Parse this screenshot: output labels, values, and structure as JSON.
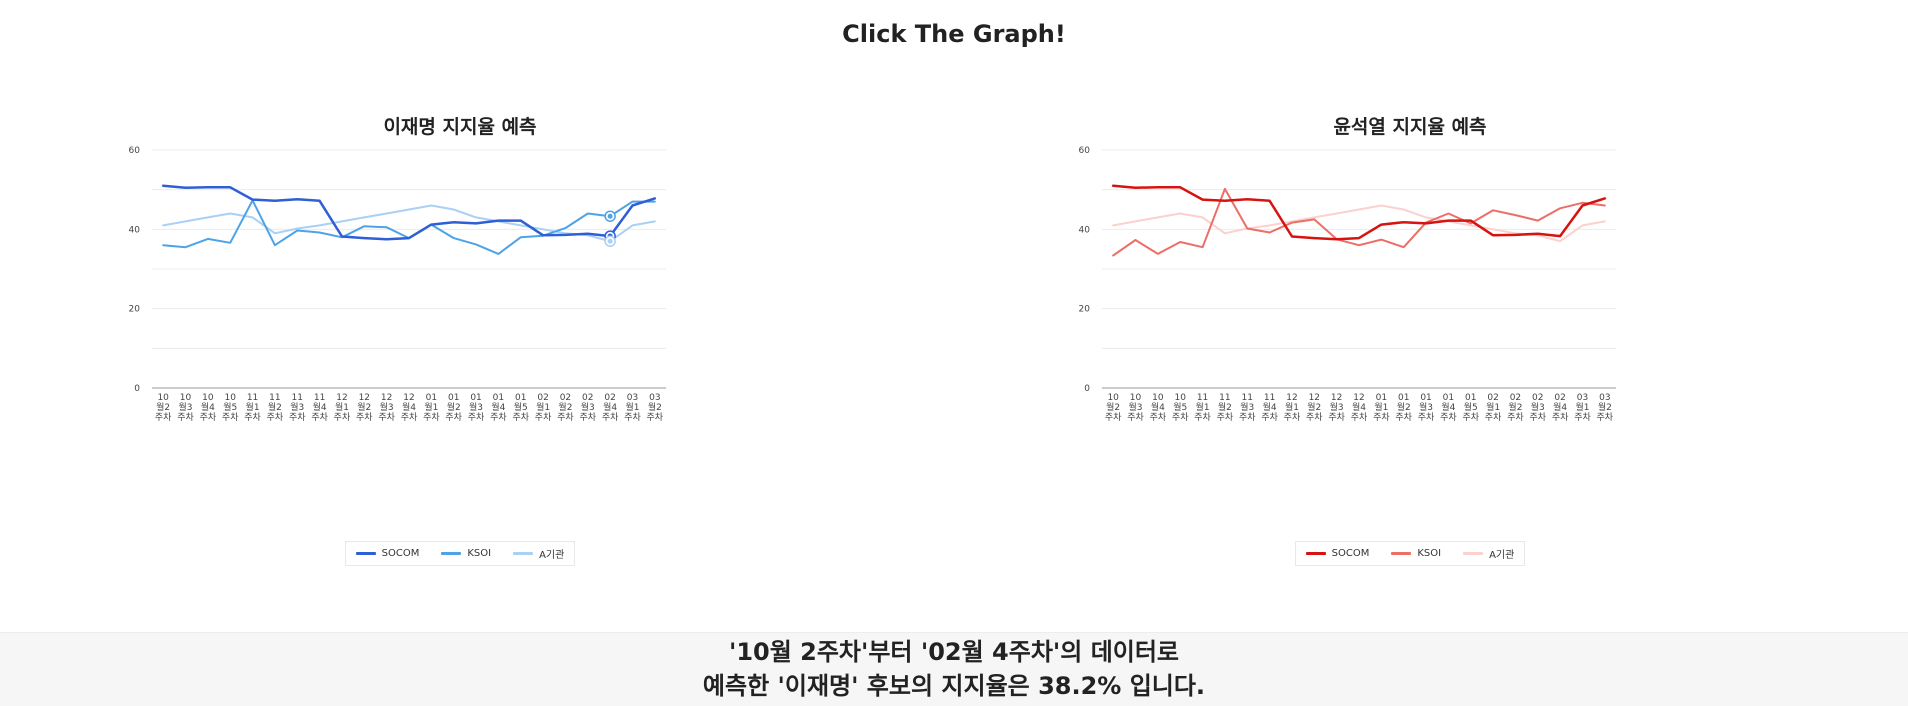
{
  "page": {
    "title": "Click The Graph!"
  },
  "chart_data": [
    {
      "type": "line",
      "title": "이재명 지지율 예측",
      "ylim": [
        0,
        60
      ],
      "yticks": [
        0,
        20,
        40,
        60
      ],
      "grid": true,
      "legend_position": "bottom-center",
      "categories": [
        [
          "10",
          "월2",
          "주차"
        ],
        [
          "10",
          "월3",
          "주차"
        ],
        [
          "10",
          "월4",
          "주차"
        ],
        [
          "10",
          "월5",
          "주차"
        ],
        [
          "11",
          "월1",
          "주차"
        ],
        [
          "11",
          "월2",
          "주차"
        ],
        [
          "11",
          "월3",
          "주차"
        ],
        [
          "11",
          "월4",
          "주차"
        ],
        [
          "12",
          "월1",
          "주차"
        ],
        [
          "12",
          "월2",
          "주차"
        ],
        [
          "12",
          "월3",
          "주차"
        ],
        [
          "12",
          "월4",
          "주차"
        ],
        [
          "01",
          "월1",
          "주차"
        ],
        [
          "01",
          "월2",
          "주차"
        ],
        [
          "01",
          "월3",
          "주차"
        ],
        [
          "01",
          "월4",
          "주차"
        ],
        [
          "01",
          "월5",
          "주차"
        ],
        [
          "02",
          "월1",
          "주차"
        ],
        [
          "02",
          "월2",
          "주차"
        ],
        [
          "02",
          "월3",
          "주차"
        ],
        [
          "02",
          "월4",
          "주차"
        ],
        [
          "03",
          "월1",
          "주차"
        ],
        [
          "03",
          "월2",
          "주차"
        ]
      ],
      "series": [
        {
          "name": "SOCOM",
          "color": "#2f5fd6",
          "width": 2.5,
          "values": [
            51,
            50.5,
            50.6,
            50.6,
            47.5,
            47.2,
            47.6,
            47.2,
            38.2,
            37.8,
            37.5,
            37.8,
            41.2,
            41.8,
            41.5,
            42.2,
            42.2,
            38.5,
            38.6,
            38.9,
            38.3,
            46,
            47.8
          ]
        },
        {
          "name": "KSOI",
          "color": "#4da3e8",
          "width": 2,
          "values": [
            36,
            35.5,
            37.6,
            36.6,
            47.3,
            36,
            39.7,
            39.2,
            38,
            40.8,
            40.5,
            37.8,
            41.2,
            37.8,
            36.2,
            33.8,
            38,
            38.4,
            40.3,
            44,
            43.3,
            47,
            47
          ]
        },
        {
          "name": "A기관",
          "color": "#a9d0f5",
          "width": 2,
          "values": [
            41,
            42,
            43,
            44,
            43,
            39,
            40.2,
            41,
            42,
            43,
            44,
            45,
            46,
            45,
            43,
            42,
            41,
            40,
            39,
            38.5,
            37,
            41,
            42
          ]
        }
      ],
      "highlight_index": 20
    },
    {
      "type": "line",
      "title": "윤석열 지지율 예측",
      "ylim": [
        0,
        60
      ],
      "yticks": [
        0,
        20,
        40,
        60
      ],
      "grid": true,
      "legend_position": "bottom-center",
      "categories": [
        [
          "10",
          "월2",
          "주차"
        ],
        [
          "10",
          "월3",
          "주차"
        ],
        [
          "10",
          "월4",
          "주차"
        ],
        [
          "10",
          "월5",
          "주차"
        ],
        [
          "11",
          "월1",
          "주차"
        ],
        [
          "11",
          "월2",
          "주차"
        ],
        [
          "11",
          "월3",
          "주차"
        ],
        [
          "11",
          "월4",
          "주차"
        ],
        [
          "12",
          "월1",
          "주차"
        ],
        [
          "12",
          "월2",
          "주차"
        ],
        [
          "12",
          "월3",
          "주차"
        ],
        [
          "12",
          "월4",
          "주차"
        ],
        [
          "01",
          "월1",
          "주차"
        ],
        [
          "01",
          "월2",
          "주차"
        ],
        [
          "01",
          "월3",
          "주차"
        ],
        [
          "01",
          "월4",
          "주차"
        ],
        [
          "01",
          "월5",
          "주차"
        ],
        [
          "02",
          "월1",
          "주차"
        ],
        [
          "02",
          "월2",
          "주차"
        ],
        [
          "02",
          "월3",
          "주차"
        ],
        [
          "02",
          "월4",
          "주차"
        ],
        [
          "03",
          "월1",
          "주차"
        ],
        [
          "03",
          "월2",
          "주차"
        ]
      ],
      "series": [
        {
          "name": "SOCOM",
          "color": "#d7130f",
          "width": 2.5,
          "values": [
            51,
            50.5,
            50.6,
            50.6,
            47.5,
            47.2,
            47.6,
            47.2,
            38.2,
            37.8,
            37.5,
            37.8,
            41.2,
            41.8,
            41.5,
            42.2,
            42.2,
            38.5,
            38.6,
            38.9,
            38.3,
            46,
            47.8
          ]
        },
        {
          "name": "KSOI",
          "color": "#ec6e66",
          "width": 2,
          "values": [
            33.4,
            37.3,
            33.8,
            36.8,
            35.5,
            50.2,
            40.2,
            39.2,
            41.7,
            42.5,
            37.5,
            36,
            37.4,
            35.5,
            41.7,
            44,
            41.5,
            44.8,
            43.6,
            42.2,
            45.3,
            46.7,
            46
          ]
        },
        {
          "name": "A기관",
          "color": "#fbd1cd",
          "width": 2,
          "values": [
            41,
            42,
            43,
            44,
            43,
            39,
            40.2,
            41,
            42,
            43,
            44,
            45,
            46,
            45,
            43,
            42,
            41,
            40,
            39,
            38.5,
            37,
            41,
            42
          ]
        }
      ]
    }
  ],
  "footer": {
    "line1": "'10월 2주차'부터 '02월 4주차'의 데이터로",
    "line2": "예측한 '이재명' 후보의 지지율은 38.2% 입니다."
  }
}
